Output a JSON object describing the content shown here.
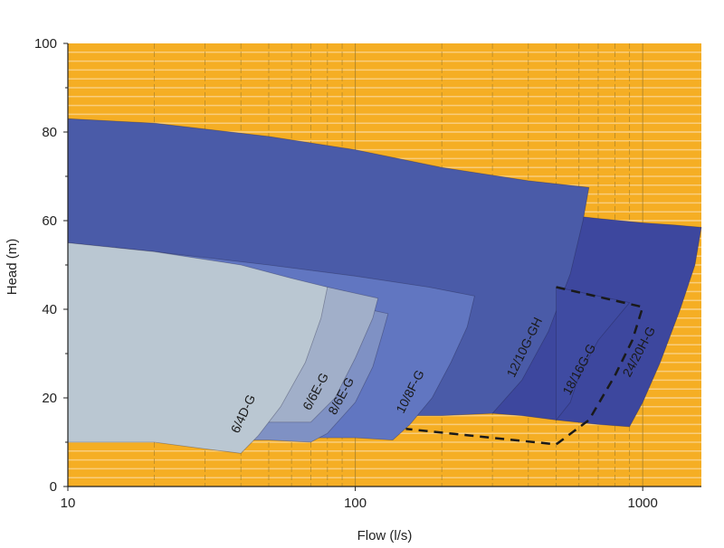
{
  "chart_data": {
    "type": "area",
    "xlabel": "Flow (l/s)",
    "ylabel": "Head (m)",
    "xscale": "log",
    "xlim": [
      10,
      1600
    ],
    "ylim": [
      0,
      100
    ],
    "xticks": [
      10,
      100,
      1000
    ],
    "xtick_labels": [
      "10",
      "100",
      "1000"
    ],
    "yticks": [
      0,
      20,
      40,
      60,
      80,
      100
    ],
    "ytick_labels": [
      "0",
      "20",
      "40",
      "60",
      "80",
      "100"
    ],
    "grid": true,
    "colors": {
      "background": "#F5AE24",
      "grid": "#F9CD7C",
      "grid_major": "#9A7A2A",
      "axis": "#222222"
    },
    "series": [
      {
        "name": "24/20H-G",
        "color": "#3D479E",
        "label_at": [
          1000,
          30
        ],
        "label_rot": -62,
        "points": [
          [
            300,
            65
          ],
          [
            400,
            62
          ],
          [
            500,
            61.5
          ],
          [
            700,
            60.5
          ],
          [
            1000,
            59.5
          ],
          [
            1300,
            59
          ],
          [
            1600,
            58.5
          ],
          [
            1520,
            50
          ],
          [
            1350,
            40
          ],
          [
            1150,
            28
          ],
          [
            1000,
            19
          ],
          [
            900,
            13.5
          ],
          [
            700,
            14
          ],
          [
            500,
            15
          ],
          [
            380,
            16
          ],
          [
            300,
            16.5
          ]
        ]
      },
      {
        "name": "12/10G-GH",
        "color": "#4A5BA8",
        "label_at": [
          400,
          31
        ],
        "label_rot": -64,
        "points": [
          [
            10,
            83
          ],
          [
            20,
            82
          ],
          [
            50,
            79
          ],
          [
            100,
            76
          ],
          [
            200,
            72
          ],
          [
            400,
            69
          ],
          [
            650,
            67.5
          ],
          [
            620,
            60
          ],
          [
            560,
            48
          ],
          [
            470,
            35
          ],
          [
            380,
            24
          ],
          [
            300,
            16.5
          ],
          [
            200,
            16
          ],
          [
            100,
            16
          ],
          [
            10,
            16
          ]
        ]
      },
      {
        "name": "18/16G-G",
        "color": "#3F4BA2",
        "label_at": [
          620,
          26
        ],
        "label_rot": -62,
        "points": [
          [
            500,
            45
          ],
          [
            900,
            41.5
          ],
          [
            700,
            33
          ],
          [
            600,
            25
          ],
          [
            560,
            19
          ],
          [
            500,
            15
          ]
        ]
      },
      {
        "name": "10/8F-G",
        "color": "#6176C1",
        "label_at": [
          160,
          21
        ],
        "label_rot": -63,
        "points": [
          [
            10,
            55
          ],
          [
            20,
            53
          ],
          [
            50,
            50
          ],
          [
            100,
            47.5
          ],
          [
            180,
            45
          ],
          [
            260,
            43
          ],
          [
            245,
            36
          ],
          [
            215,
            28
          ],
          [
            185,
            20
          ],
          [
            155,
            14
          ],
          [
            135,
            10.5
          ],
          [
            100,
            11
          ],
          [
            10,
            11
          ]
        ]
      },
      {
        "name": "8/6E-G",
        "color": "#7F91C4",
        "label_at": [
          92,
          20
        ],
        "label_rot": -62,
        "points": [
          [
            10,
            54
          ],
          [
            20,
            52
          ],
          [
            40,
            48
          ],
          [
            80,
            42
          ],
          [
            130,
            39
          ],
          [
            125,
            35
          ],
          [
            115,
            27
          ],
          [
            100,
            19
          ],
          [
            80,
            12
          ],
          [
            70,
            10
          ],
          [
            50,
            10.5
          ],
          [
            10,
            10.5
          ]
        ]
      },
      {
        "name": "6/6E-G",
        "color": "#A1AFC9",
        "label_at": [
          75,
          21
        ],
        "label_rot": -62,
        "points": [
          [
            10,
            54
          ],
          [
            20,
            51.5
          ],
          [
            40,
            48.5
          ],
          [
            80,
            45
          ],
          [
            120,
            42.5
          ],
          [
            115,
            38
          ],
          [
            100,
            29
          ],
          [
            85,
            20
          ],
          [
            70,
            14.5
          ],
          [
            50,
            14.5
          ],
          [
            10,
            14.5
          ]
        ]
      },
      {
        "name": "6/4D-G",
        "color": "#BAC7D2",
        "label_at": [
          42,
          16
        ],
        "label_rot": -65,
        "points": [
          [
            10,
            55
          ],
          [
            20,
            53
          ],
          [
            40,
            50
          ],
          [
            60,
            47
          ],
          [
            80,
            45
          ],
          [
            76,
            38
          ],
          [
            67,
            28
          ],
          [
            55,
            18
          ],
          [
            46,
            11.5
          ],
          [
            40,
            7.5
          ],
          [
            30,
            8.5
          ],
          [
            20,
            10
          ],
          [
            10,
            10
          ]
        ]
      }
    ],
    "dashed_boundary": {
      "color": "#1A1A1A",
      "points": [
        [
          500,
          45
        ],
        [
          1000,
          40.5
        ],
        [
          920,
          33
        ],
        [
          800,
          25
        ],
        [
          650,
          15
        ],
        [
          500,
          9.5
        ],
        [
          150,
          13
        ]
      ]
    }
  }
}
